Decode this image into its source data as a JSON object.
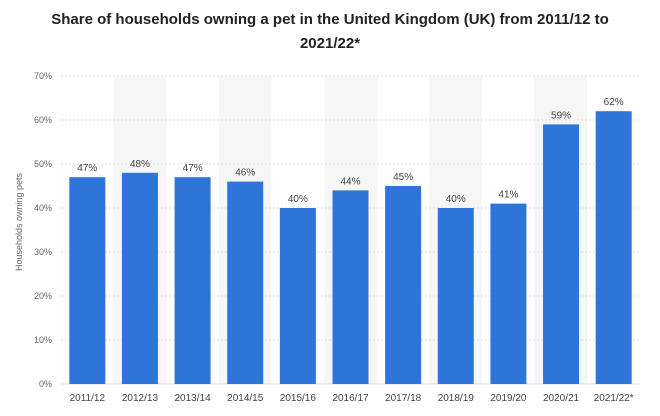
{
  "chart_data": {
    "type": "bar",
    "title": "Share of households owning a pet in the United Kingdom (UK) from 2011/12 to 2021/22*",
    "ylabel": "Households owning pets",
    "xlabel": "",
    "categories": [
      "2011/12",
      "2012/13",
      "2013/14",
      "2014/15",
      "2015/16",
      "2016/17",
      "2017/18",
      "2018/19",
      "2019/20",
      "2020/21",
      "2021/22*"
    ],
    "values": [
      47,
      48,
      47,
      46,
      40,
      44,
      45,
      40,
      41,
      59,
      62
    ],
    "value_labels": [
      "47%",
      "48%",
      "47%",
      "46%",
      "40%",
      "44%",
      "45%",
      "40%",
      "41%",
      "59%",
      "62%"
    ],
    "ylim": [
      0,
      70
    ],
    "yticks": [
      0,
      10,
      20,
      30,
      40,
      50,
      60,
      70
    ],
    "ytick_labels": [
      "0%",
      "10%",
      "20%",
      "30%",
      "40%",
      "50%",
      "60%",
      "70%"
    ],
    "grid": true,
    "bar_color": "#2f74d9",
    "band_color": "#f6f6f6"
  }
}
